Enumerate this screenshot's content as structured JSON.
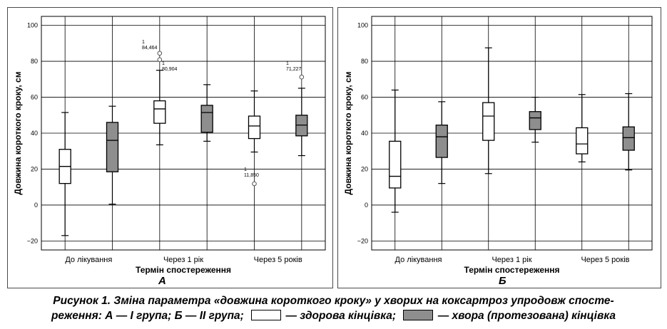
{
  "colors": {
    "healthy": "#ffffff",
    "diseased": "#8e8e8e",
    "outline": "#000000"
  },
  "caption": {
    "line1": "Рисунок 1. Зміна параметра «довжина короткого кроку» у хворих на коксартроз упродовж спосте-",
    "line2a": "реження: А — І група; Б — ІІ група;",
    "line2b": "— здорова кінцівка;",
    "line2c": "— хвора (протезована) кінцівка"
  },
  "chart_data": [
    {
      "type": "box",
      "panel_label": "А",
      "xlabel": "Термін спостереження",
      "ylabel": "Довжина короткого кроку, см",
      "ylim": [
        -25,
        105
      ],
      "yticks": [
        "100",
        "80",
        "60",
        "40",
        "20",
        "0",
        "−20"
      ],
      "categories": [
        "До лікування",
        "Через 1 рік",
        "Через 5 років"
      ],
      "grid": true,
      "series": [
        {
          "key": "healthy",
          "boxes": [
            {
              "min": -17,
              "q1": 12,
              "median": 21.5,
              "q3": 31,
              "max": 51.5
            },
            {
              "min": 33.5,
              "q1": 45.5,
              "median": 53.5,
              "q3": 58,
              "max": 75
            },
            {
              "min": 29.5,
              "q1": 37,
              "median": 44,
              "q3": 49.5,
              "max": 63.5
            }
          ]
        },
        {
          "key": "diseased",
          "boxes": [
            {
              "min": 0.5,
              "q1": 18.5,
              "median": 36,
              "q3": 46,
              "max": 55
            },
            {
              "min": 35.5,
              "q1": 40.5,
              "median": 51.5,
              "q3": 55.5,
              "max": 67
            },
            {
              "min": 27.5,
              "q1": 38.5,
              "median": 44.5,
              "q3": 50,
              "max": 65
            }
          ]
        }
      ],
      "outliers": [
        {
          "category": 1,
          "series": "healthy",
          "value": 84.464,
          "id": "1",
          "label": "84,464"
        },
        {
          "category": 1,
          "series": "healthy",
          "value": 80.904,
          "id": "1",
          "label": "80,904"
        },
        {
          "category": 2,
          "series": "healthy",
          "value": 11.85,
          "id": "1",
          "label": "11,850"
        },
        {
          "category": 2,
          "series": "diseased",
          "value": 71.227,
          "id": "1",
          "label": "71,227"
        }
      ]
    },
    {
      "type": "box",
      "panel_label": "Б",
      "xlabel": "Термін спостереження",
      "ylabel": "Довжина короткого кроку, см",
      "ylim": [
        -25,
        105
      ],
      "yticks": [
        "100",
        "80",
        "60",
        "40",
        "20",
        "0",
        "−20"
      ],
      "categories": [
        "До лікування",
        "Через 1 рік",
        "Через 5 років"
      ],
      "grid": true,
      "series": [
        {
          "key": "healthy",
          "boxes": [
            {
              "min": -4,
              "q1": 9.5,
              "median": 16,
              "q3": 35.5,
              "max": 64
            },
            {
              "min": 17.5,
              "q1": 36,
              "median": 49.5,
              "q3": 57,
              "max": 87.5
            },
            {
              "min": 24,
              "q1": 28.5,
              "median": 34,
              "q3": 43,
              "max": 61.5
            }
          ]
        },
        {
          "key": "diseased",
          "boxes": [
            {
              "min": 12,
              "q1": 26.5,
              "median": 38,
              "q3": 44.5,
              "max": 57.5
            },
            {
              "min": 35,
              "q1": 42,
              "median": 48.5,
              "q3": 52,
              "max": 60
            },
            {
              "min": 19.5,
              "q1": 30.5,
              "median": 37.5,
              "q3": 43.5,
              "max": 62
            }
          ]
        }
      ],
      "outliers": []
    }
  ]
}
